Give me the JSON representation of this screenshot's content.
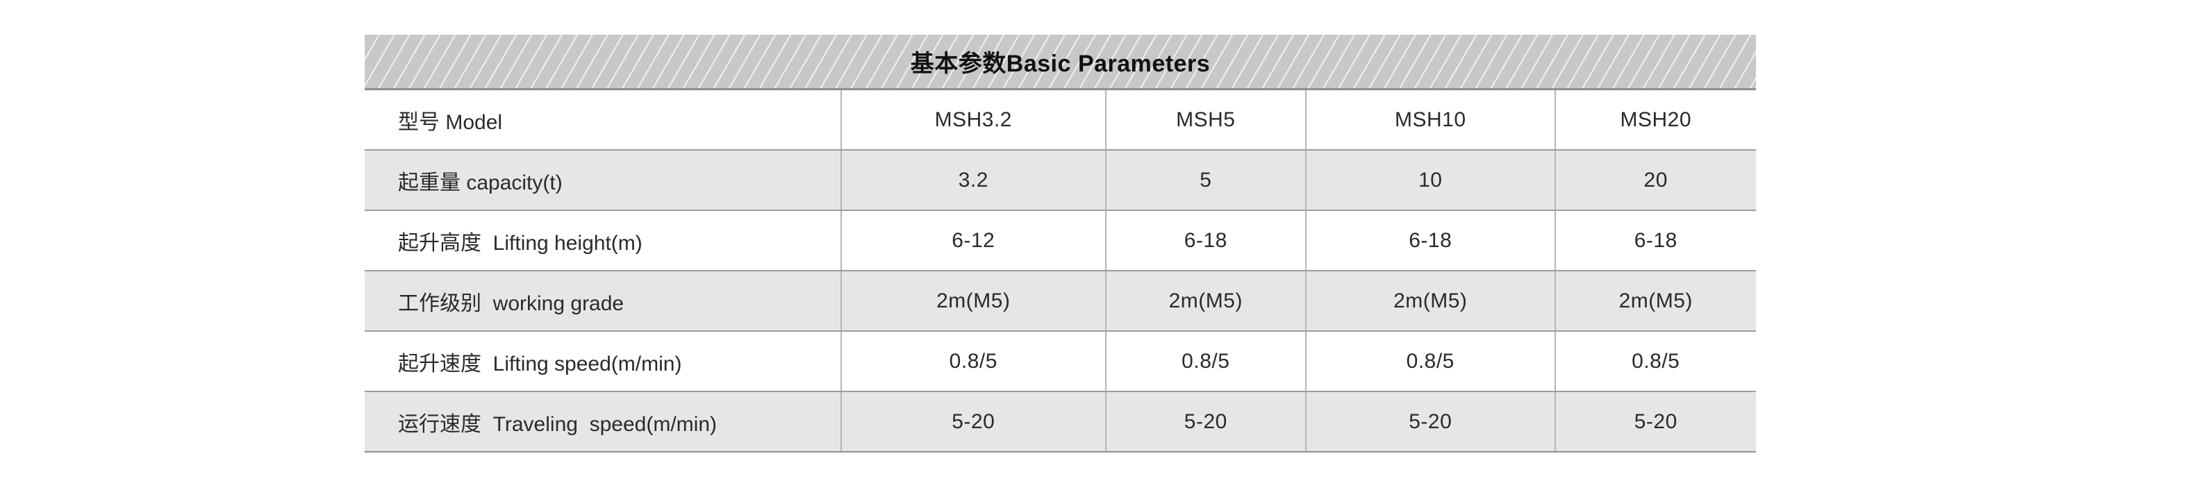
{
  "table": {
    "title": "基本参数Basic Parameters",
    "rows": [
      {
        "label": "型号 Model",
        "values": [
          "MSH3.2",
          "MSH5",
          "MSH10",
          "MSH20"
        ]
      },
      {
        "label": "起重量 capacity(t)",
        "values": [
          "3.2",
          "5",
          "10",
          "20"
        ]
      },
      {
        "label": "起升高度  Lifting height(m)",
        "values": [
          "6-12",
          "6-18",
          "6-18",
          "6-18"
        ]
      },
      {
        "label": "工作级别  working grade",
        "values": [
          "2m(M5)",
          "2m(M5)",
          "2m(M5)",
          "2m(M5)"
        ]
      },
      {
        "label": "起升速度  Lifting speed(m/min)",
        "values": [
          "0.8/5",
          "0.8/5",
          "0.8/5",
          "0.8/5"
        ]
      },
      {
        "label": "运行速度  Traveling  speed(m/min)",
        "values": [
          "5-20",
          "5-20",
          "5-20",
          "5-20"
        ]
      }
    ],
    "colors": {
      "header_bg": "#c8c8c8",
      "header_stripe": "#f0f0f0",
      "row_shaded_bg": "#e6e6e6",
      "row_plain_bg": "#ffffff",
      "border_horizontal": "#9c9c9c",
      "border_vertical": "#b5b5b5",
      "title_text": "#111111",
      "body_text": "#2a2a2a"
    }
  }
}
